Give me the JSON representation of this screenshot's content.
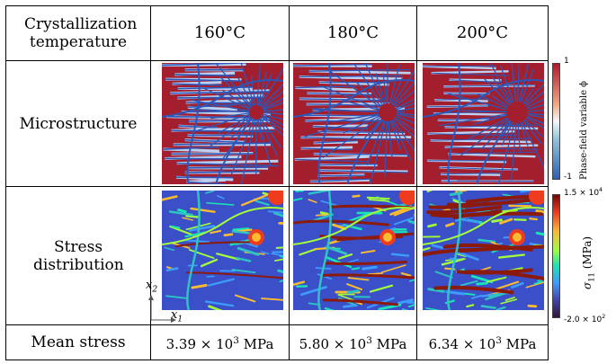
{
  "header": {
    "row_label": "Crystallization temperature",
    "temperatures": [
      "160°C",
      "180°C",
      "200°C"
    ]
  },
  "rows": {
    "microstructure": "Microstructure",
    "stress": "Stress distribution",
    "mean": "Mean stress"
  },
  "mean_stress": [
    {
      "mantissa": "3.39",
      "exponent": "3",
      "unit": "MPa"
    },
    {
      "mantissa": "5.80",
      "exponent": "3",
      "unit": "MPa"
    },
    {
      "mantissa": "6.34",
      "exponent": "3",
      "unit": "MPa"
    }
  ],
  "colorbar_phase": {
    "max": "1",
    "min": "-1",
    "label": "Phase-field variable ϕ",
    "colors": [
      "#b2182b",
      "#f4a582",
      "#f7f7f7",
      "#92c5de",
      "#2f5fb3"
    ]
  },
  "colorbar_stress": {
    "max_mantissa": "1.5",
    "max_exponent": "4",
    "min_mantissa": "-2.0",
    "min_exponent": "2",
    "label_symbol": "σ",
    "label_sub": "11",
    "label_unit": "(MPa)",
    "colors": [
      "#7a0403",
      "#ef3b1e",
      "#fabb30",
      "#a1fc3c",
      "#1ae4b6",
      "#3e9bfe",
      "#4145ab",
      "#30123b"
    ]
  },
  "axes": {
    "x": "x",
    "x_sub": "1",
    "y": "x",
    "y_sub": "2"
  },
  "colors": {
    "grain_red": "#a31f2e",
    "boundary_blue": "#2d56b8",
    "boundary_light": "#bcd0f0",
    "stress_bg": "#3a4fc8",
    "stress_mid": "#2ec4c4",
    "stress_high": "#8b1a0d"
  }
}
